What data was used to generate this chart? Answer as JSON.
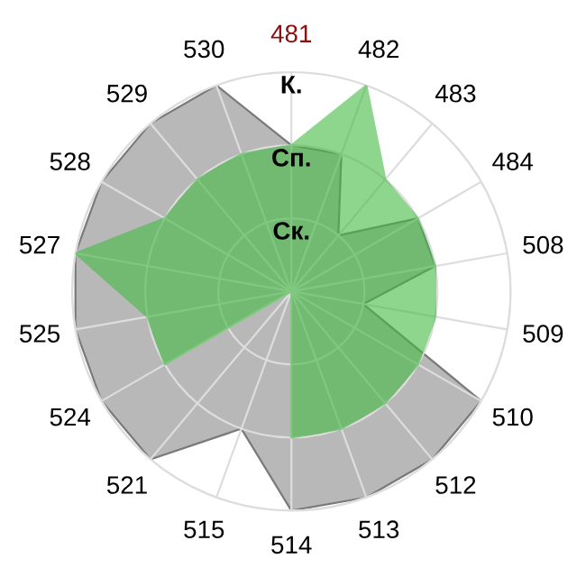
{
  "chart_data": {
    "type": "radar",
    "categories": [
      "481",
      "482",
      "483",
      "484",
      "508",
      "509",
      "510",
      "512",
      "513",
      "514",
      "515",
      "521",
      "524",
      "525",
      "527",
      "528",
      "529",
      "530"
    ],
    "series": [
      {
        "color": "#b8b8b8",
        "values": [
          2,
          2,
          1,
          2,
          2,
          1,
          3,
          3,
          3,
          3,
          2,
          3,
          3,
          3,
          3,
          3,
          3,
          3
        ]
      },
      {
        "color": "#44b944",
        "values": [
          2,
          3,
          2,
          2,
          2,
          2,
          2,
          2,
          2,
          2,
          0,
          0,
          2,
          2,
          3,
          2,
          2,
          2
        ]
      }
    ],
    "ylim": [
      0,
      3
    ],
    "yticks": [
      {
        "value": 1,
        "label": "Ск."
      },
      {
        "value": 2,
        "label": "Сп."
      },
      {
        "value": 3,
        "label": "К."
      }
    ],
    "grid": true
  }
}
